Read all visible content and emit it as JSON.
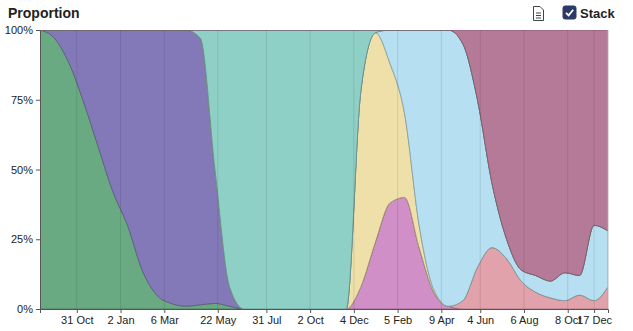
{
  "chart_data": {
    "type": "area",
    "title": "Proportion",
    "toggle_label": "Stack",
    "stacked": true,
    "grid": true,
    "x": [
      -53,
      -32,
      -11,
      10,
      31,
      52,
      73,
      94,
      115,
      136,
      157,
      178,
      199,
      220,
      241,
      262,
      283,
      304,
      325,
      346,
      367,
      388,
      409,
      430,
      451,
      472,
      493,
      514,
      535,
      556,
      577,
      598,
      619,
      640,
      661,
      682,
      703,
      724,
      745,
      765
    ],
    "xlim": [
      -53,
      765
    ],
    "xticks": [
      {
        "value": 0,
        "label": "31 Oct"
      },
      {
        "value": 63,
        "label": "2 Jan"
      },
      {
        "value": 126,
        "label": "6 Mar"
      },
      {
        "value": 203,
        "label": "22 May"
      },
      {
        "value": 273,
        "label": "31 Jul"
      },
      {
        "value": 336,
        "label": "2 Oct"
      },
      {
        "value": 399,
        "label": "4 Dec"
      },
      {
        "value": 462,
        "label": "5 Feb"
      },
      {
        "value": 525,
        "label": "9 Apr"
      },
      {
        "value": 581,
        "label": "4 Jun"
      },
      {
        "value": 644,
        "label": "6 Aug"
      },
      {
        "value": 707,
        "label": "8 Oct"
      },
      {
        "value": 745,
        "label": "17 Dec"
      }
    ],
    "ylim": [
      0,
      100
    ],
    "yticks": [
      {
        "value": 0,
        "label": "0%"
      },
      {
        "value": 25,
        "label": "25%"
      },
      {
        "value": 50,
        "label": "50%"
      },
      {
        "value": 75,
        "label": "75%"
      },
      {
        "value": 100,
        "label": "100%"
      }
    ],
    "series": [
      {
        "color": "#6aaa82",
        "values": [
          100,
          97,
          88,
          74,
          58,
          42,
          30,
          14,
          5,
          2,
          1,
          1.5,
          2,
          1,
          0,
          0,
          0,
          0,
          0,
          0,
          0,
          0,
          0,
          0,
          0,
          0,
          0,
          0,
          0,
          0,
          0,
          0,
          0,
          0,
          0,
          0,
          0,
          0,
          0,
          0
        ]
      },
      {
        "color": "#8479b8",
        "values": [
          0,
          3,
          12,
          26,
          42,
          58,
          70,
          86,
          95,
          98,
          99,
          95.5,
          48,
          7,
          0,
          0,
          0,
          0,
          0,
          0,
          0,
          0,
          0,
          0,
          0,
          0,
          0,
          0,
          0,
          0,
          0,
          0,
          0,
          0,
          0,
          0,
          0,
          0,
          0,
          0
        ]
      },
      {
        "color": "#d18fc8",
        "values": [
          0,
          0,
          0,
          0,
          0,
          0,
          0,
          0,
          0,
          0,
          0,
          0,
          0,
          0,
          0,
          0,
          0,
          0,
          0,
          0,
          0,
          0,
          8,
          24,
          38,
          40,
          22,
          6,
          1,
          0,
          0,
          0,
          0,
          0,
          0,
          0,
          0,
          0,
          0,
          0
        ]
      },
      {
        "color": "#e2a2ab",
        "values": [
          0,
          0,
          0,
          0,
          0,
          0,
          0,
          0,
          0,
          0,
          0,
          0,
          0,
          0,
          0,
          0,
          0,
          0,
          0,
          0,
          0,
          0,
          0,
          0,
          0,
          0,
          0,
          0,
          0,
          3,
          15,
          22,
          18,
          10,
          6,
          4,
          3,
          5,
          3,
          8
        ]
      },
      {
        "color": "#efe0aa",
        "values": [
          0,
          0,
          0,
          0,
          0,
          0,
          0,
          0,
          0,
          0,
          0,
          0,
          0,
          0,
          0,
          0,
          0,
          0,
          0,
          0,
          0,
          0,
          70,
          75,
          50,
          30,
          8,
          1,
          0,
          0,
          0,
          0,
          0,
          0,
          0,
          0,
          0,
          0,
          0,
          0
        ]
      },
      {
        "color": "#b6dff1",
        "values": [
          0,
          0,
          0,
          0,
          0,
          0,
          0,
          0,
          0,
          0,
          0,
          0,
          0,
          0,
          0,
          0,
          0,
          0,
          0,
          0,
          0,
          0,
          0,
          0,
          12,
          30,
          70,
          93,
          99,
          92,
          60,
          23,
          7,
          4,
          6,
          6,
          10,
          7,
          27,
          20
        ]
      },
      {
        "color": "#8fd0c6",
        "values": [
          0,
          0,
          0,
          0,
          0,
          0,
          0,
          0,
          0,
          0,
          0,
          3,
          50,
          92,
          100,
          100,
          100,
          100,
          100,
          100,
          100,
          100,
          22,
          1,
          0,
          0,
          0,
          0,
          0,
          0,
          0,
          0,
          0,
          0,
          0,
          0,
          0,
          0,
          0,
          0
        ]
      },
      {
        "color": "#b57a97",
        "values": [
          0,
          0,
          0,
          0,
          0,
          0,
          0,
          0,
          0,
          0,
          0,
          0,
          0,
          0,
          0,
          0,
          0,
          0,
          0,
          0,
          0,
          0,
          0,
          0,
          0,
          0,
          0,
          0,
          0,
          5,
          25,
          55,
          75,
          86,
          88,
          90,
          87,
          88,
          70,
          72
        ]
      }
    ]
  }
}
